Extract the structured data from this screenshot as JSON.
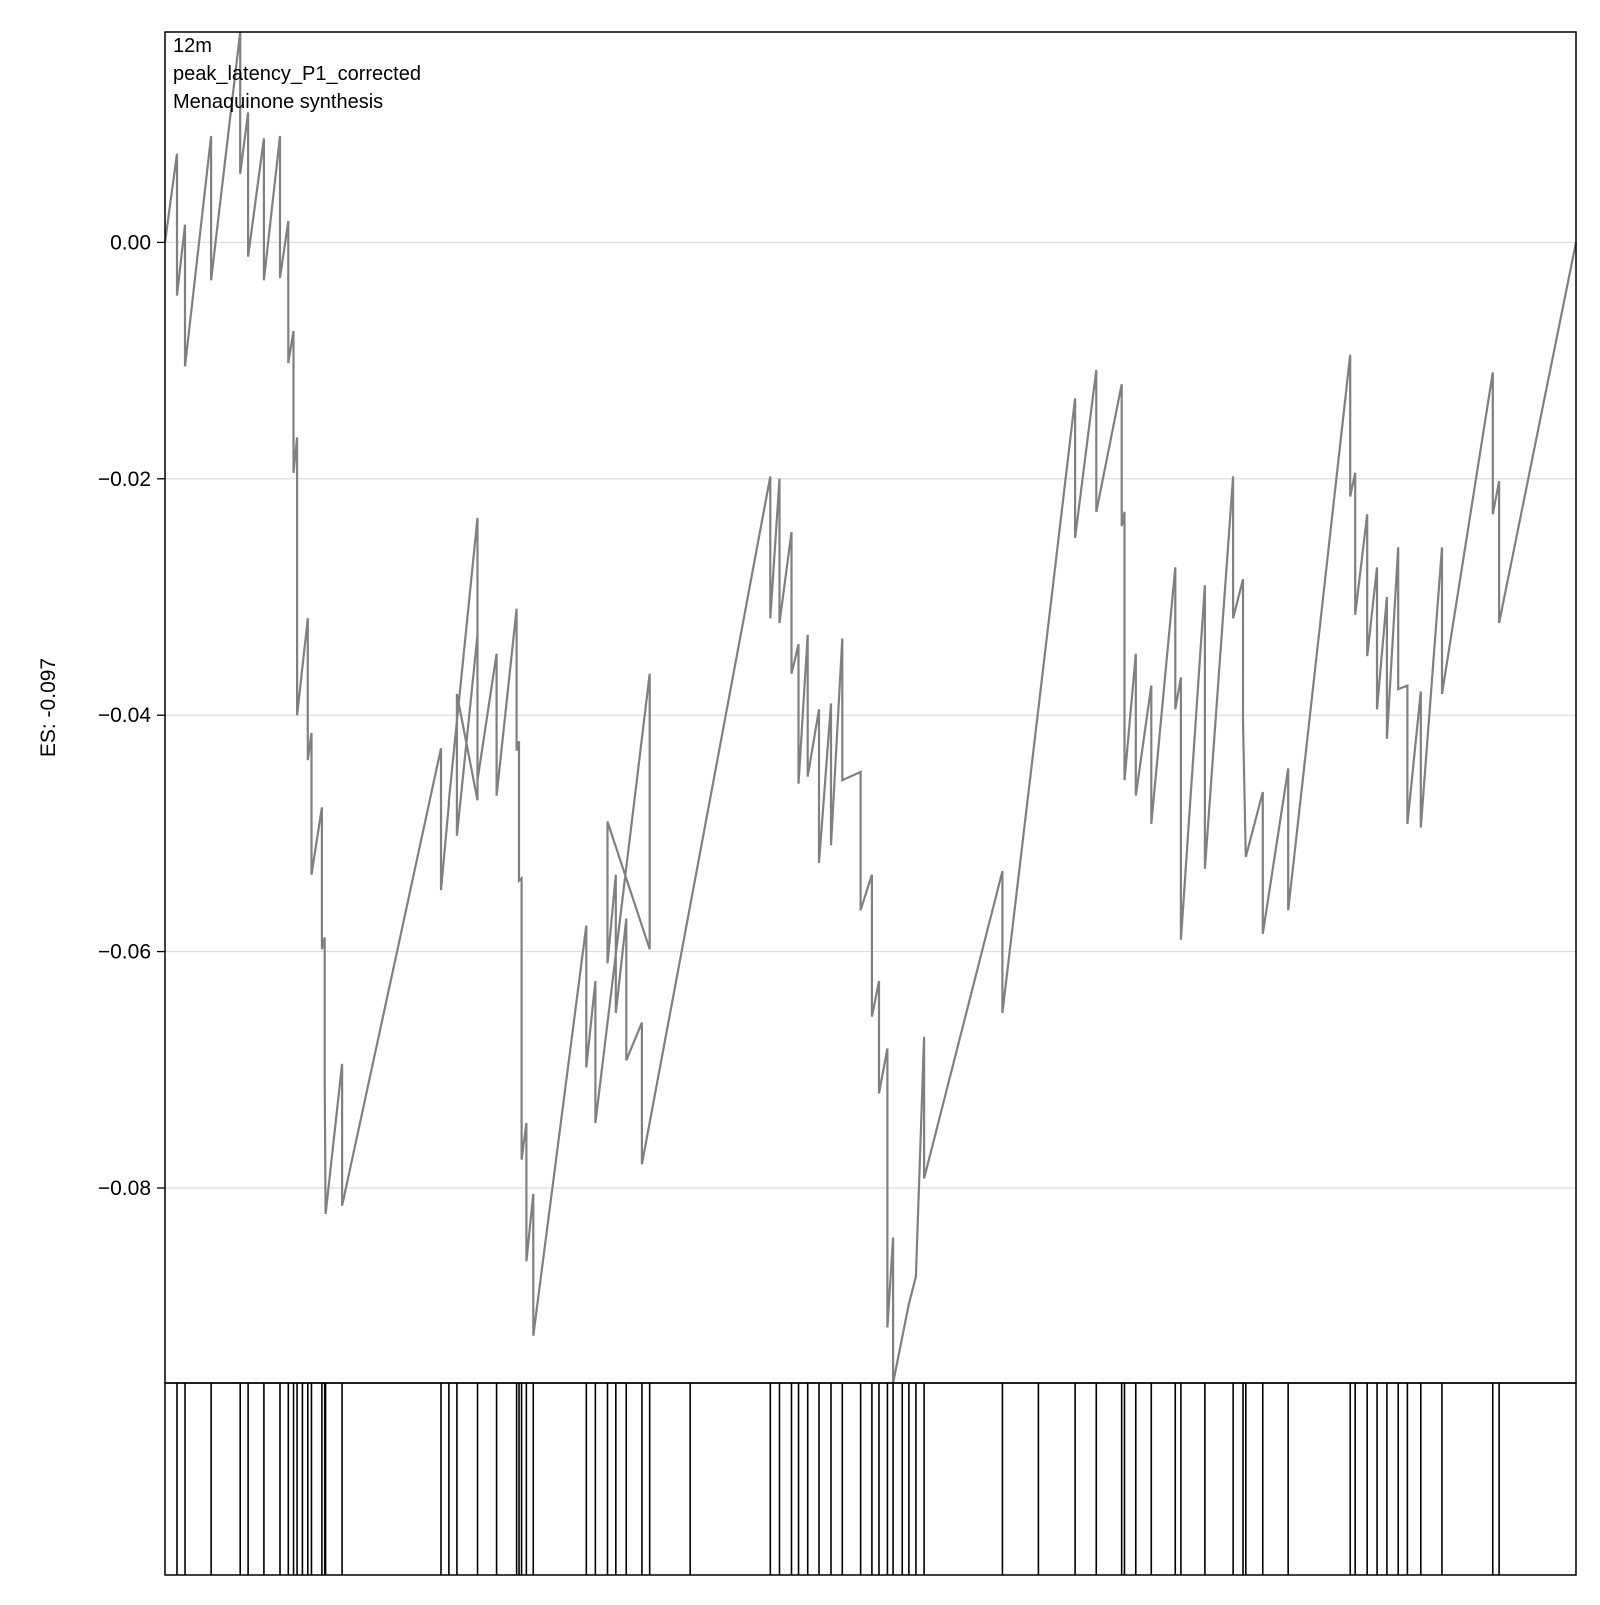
{
  "chart_data": {
    "type": "line",
    "ylabel": "ES: -0.097",
    "annotations": [
      "12m",
      "peak_latency_P1_corrected",
      "Menaquinone synthesis"
    ],
    "y_ticks": [
      0.0,
      -0.02,
      -0.04,
      -0.06,
      -0.08
    ],
    "y_tick_labels": [
      "0.00",
      "−0.02",
      "−0.04",
      "−0.06",
      "−0.08"
    ],
    "ylim": [
      -0.0965,
      0.0178
    ],
    "xlim": [
      0,
      1
    ],
    "grid": "horizontal",
    "line_color": "#808080",
    "hits": [
      0.0085,
      0.0142,
      0.0327,
      0.0533,
      0.0589,
      0.0701,
      0.0815,
      0.0874,
      0.0911,
      0.0936,
      0.0974,
      0.1012,
      0.1038,
      0.1112,
      0.1132,
      0.1138,
      0.1255,
      0.1956,
      0.2012,
      0.2069,
      0.2215,
      0.235,
      0.2492,
      0.2509,
      0.2527,
      0.2561,
      0.261,
      0.2986,
      0.305,
      0.3136,
      0.3195,
      0.3269,
      0.338,
      0.3435,
      0.3722,
      0.429,
      0.4355,
      0.444,
      0.449,
      0.4555,
      0.4635,
      0.472,
      0.48,
      0.493,
      0.501,
      0.506,
      0.512,
      0.516,
      0.5225,
      0.5272,
      0.5322,
      0.538,
      0.5935,
      0.619,
      0.645,
      0.66,
      0.678,
      0.68,
      0.688,
      0.699,
      0.716,
      0.72,
      0.737,
      0.757,
      0.764,
      0.766,
      0.778,
      0.796,
      0.84,
      0.8435,
      0.852,
      0.859,
      0.866,
      0.874,
      0.8805,
      0.89,
      0.905,
      0.941,
      0.9455
    ],
    "es_curve": [
      [
        0.0,
        0.0
      ],
      [
        0.0085,
        0.0075
      ],
      [
        0.0085,
        -0.0045
      ],
      [
        0.0142,
        0.0015
      ],
      [
        0.0142,
        -0.0105
      ],
      [
        0.0327,
        0.009
      ],
      [
        0.0327,
        -0.0032
      ],
      [
        0.0533,
        0.0178
      ],
      [
        0.0533,
        0.0058
      ],
      [
        0.0589,
        0.011
      ],
      [
        0.0589,
        -0.0012
      ],
      [
        0.0701,
        0.0088
      ],
      [
        0.0701,
        -0.0032
      ],
      [
        0.0815,
        0.009
      ],
      [
        0.0815,
        -0.003
      ],
      [
        0.0874,
        0.0018
      ],
      [
        0.0874,
        -0.0102
      ],
      [
        0.0911,
        -0.0075
      ],
      [
        0.0911,
        -0.0195
      ],
      [
        0.0936,
        -0.0165
      ],
      [
        0.0936,
        -0.0285
      ],
      [
        0.0936,
        -0.04
      ],
      [
        0.1012,
        -0.0318
      ],
      [
        0.1012,
        -0.0438
      ],
      [
        0.1038,
        -0.0415
      ],
      [
        0.1038,
        -0.0535
      ],
      [
        0.1112,
        -0.0478
      ],
      [
        0.1112,
        -0.0598
      ],
      [
        0.1132,
        -0.0588
      ],
      [
        0.1132,
        -0.0708
      ],
      [
        0.1138,
        -0.0822
      ],
      [
        0.1255,
        -0.0695
      ],
      [
        0.1255,
        -0.0815
      ],
      [
        0.1956,
        -0.0428
      ],
      [
        0.1956,
        -0.0548
      ],
      [
        0.2012,
        -0.0475
      ],
      [
        0.2012,
        -0.0472
      ],
      [
        0.2215,
        -0.0233
      ],
      [
        0.2215,
        -0.0353
      ],
      [
        0.2215,
        -0.0472
      ],
      [
        0.2069,
        -0.0382
      ],
      [
        0.2069,
        -0.0502
      ],
      [
        0.2215,
        -0.0332
      ],
      [
        0.2215,
        -0.0455
      ],
      [
        0.235,
        -0.0348
      ],
      [
        0.235,
        -0.0468
      ],
      [
        0.2492,
        -0.031
      ],
      [
        0.2492,
        -0.043
      ],
      [
        0.2509,
        -0.0422
      ],
      [
        0.2509,
        -0.054
      ],
      [
        0.2527,
        -0.0538
      ],
      [
        0.2527,
        -0.0658
      ],
      [
        0.2527,
        -0.0776
      ],
      [
        0.2561,
        -0.0745
      ],
      [
        0.2561,
        -0.0862
      ],
      [
        0.261,
        -0.0805
      ],
      [
        0.261,
        -0.0925
      ],
      [
        0.2986,
        -0.0578
      ],
      [
        0.2986,
        -0.0698
      ],
      [
        0.305,
        -0.0625
      ],
      [
        0.305,
        -0.0745
      ],
      [
        0.3435,
        -0.0365
      ],
      [
        0.3435,
        -0.0485
      ],
      [
        0.3435,
        -0.0598
      ],
      [
        0.3136,
        -0.049
      ],
      [
        0.3136,
        -0.061
      ],
      [
        0.3195,
        -0.0535
      ],
      [
        0.3195,
        -0.0652
      ],
      [
        0.3269,
        -0.0572
      ],
      [
        0.3269,
        -0.0692
      ],
      [
        0.338,
        -0.066
      ],
      [
        0.338,
        -0.078
      ],
      [
        0.429,
        -0.0198
      ],
      [
        0.429,
        -0.0318
      ],
      [
        0.4355,
        -0.02
      ],
      [
        0.4355,
        -0.0322
      ],
      [
        0.444,
        -0.0245
      ],
      [
        0.444,
        -0.0365
      ],
      [
        0.449,
        -0.034
      ],
      [
        0.449,
        -0.0458
      ],
      [
        0.4555,
        -0.0332
      ],
      [
        0.4555,
        -0.0452
      ],
      [
        0.4635,
        -0.0395
      ],
      [
        0.4635,
        -0.0525
      ],
      [
        0.472,
        -0.039
      ],
      [
        0.472,
        -0.051
      ],
      [
        0.48,
        -0.0335
      ],
      [
        0.48,
        -0.0455
      ],
      [
        0.493,
        -0.0448
      ],
      [
        0.493,
        -0.0565
      ],
      [
        0.501,
        -0.0535
      ],
      [
        0.501,
        -0.0655
      ],
      [
        0.506,
        -0.0625
      ],
      [
        0.506,
        -0.072
      ],
      [
        0.512,
        -0.0682
      ],
      [
        0.512,
        -0.0802
      ],
      [
        0.512,
        -0.0918
      ],
      [
        0.516,
        -0.0842
      ],
      [
        0.516,
        -0.0965
      ],
      [
        0.5272,
        -0.0898
      ],
      [
        0.5272,
        -0.0898
      ],
      [
        0.5322,
        -0.0875
      ],
      [
        0.538,
        -0.0672
      ],
      [
        0.538,
        -0.0792
      ],
      [
        0.5935,
        -0.0532
      ],
      [
        0.5935,
        -0.0652
      ],
      [
        0.645,
        -0.0132
      ],
      [
        0.645,
        -0.025
      ],
      [
        0.66,
        -0.0108
      ],
      [
        0.66,
        -0.0228
      ],
      [
        0.678,
        -0.012
      ],
      [
        0.678,
        -0.024
      ],
      [
        0.68,
        -0.0228
      ],
      [
        0.68,
        -0.0348
      ],
      [
        0.68,
        -0.0455
      ],
      [
        0.688,
        -0.0348
      ],
      [
        0.688,
        -0.0468
      ],
      [
        0.699,
        -0.0375
      ],
      [
        0.699,
        -0.0492
      ],
      [
        0.716,
        -0.0275
      ],
      [
        0.716,
        -0.0395
      ],
      [
        0.72,
        -0.0368
      ],
      [
        0.72,
        -0.0488
      ],
      [
        0.72,
        -0.059
      ],
      [
        0.737,
        -0.029
      ],
      [
        0.737,
        -0.053
      ],
      [
        0.757,
        -0.0198
      ],
      [
        0.757,
        -0.0318
      ],
      [
        0.764,
        -0.0285
      ],
      [
        0.764,
        -0.0405
      ],
      [
        0.766,
        -0.052
      ],
      [
        0.778,
        -0.0465
      ],
      [
        0.778,
        -0.0585
      ],
      [
        0.796,
        -0.0445
      ],
      [
        0.796,
        -0.0565
      ],
      [
        0.84,
        -0.0095
      ],
      [
        0.84,
        -0.0215
      ],
      [
        0.8435,
        -0.0195
      ],
      [
        0.8435,
        -0.0315
      ],
      [
        0.852,
        -0.023
      ],
      [
        0.852,
        -0.035
      ],
      [
        0.859,
        -0.0275
      ],
      [
        0.859,
        -0.0395
      ],
      [
        0.866,
        -0.03
      ],
      [
        0.866,
        -0.042
      ],
      [
        0.874,
        -0.0258
      ],
      [
        0.874,
        -0.0378
      ],
      [
        0.8805,
        -0.0375
      ],
      [
        0.8805,
        -0.0492
      ],
      [
        0.89,
        -0.038
      ],
      [
        0.89,
        -0.0495
      ],
      [
        0.905,
        -0.0258
      ],
      [
        0.905,
        -0.0382
      ],
      [
        0.941,
        -0.011
      ],
      [
        0.941,
        -0.023
      ],
      [
        0.9455,
        -0.0202
      ],
      [
        0.9455,
        -0.0322
      ],
      [
        1.0,
        0.0
      ]
    ]
  }
}
